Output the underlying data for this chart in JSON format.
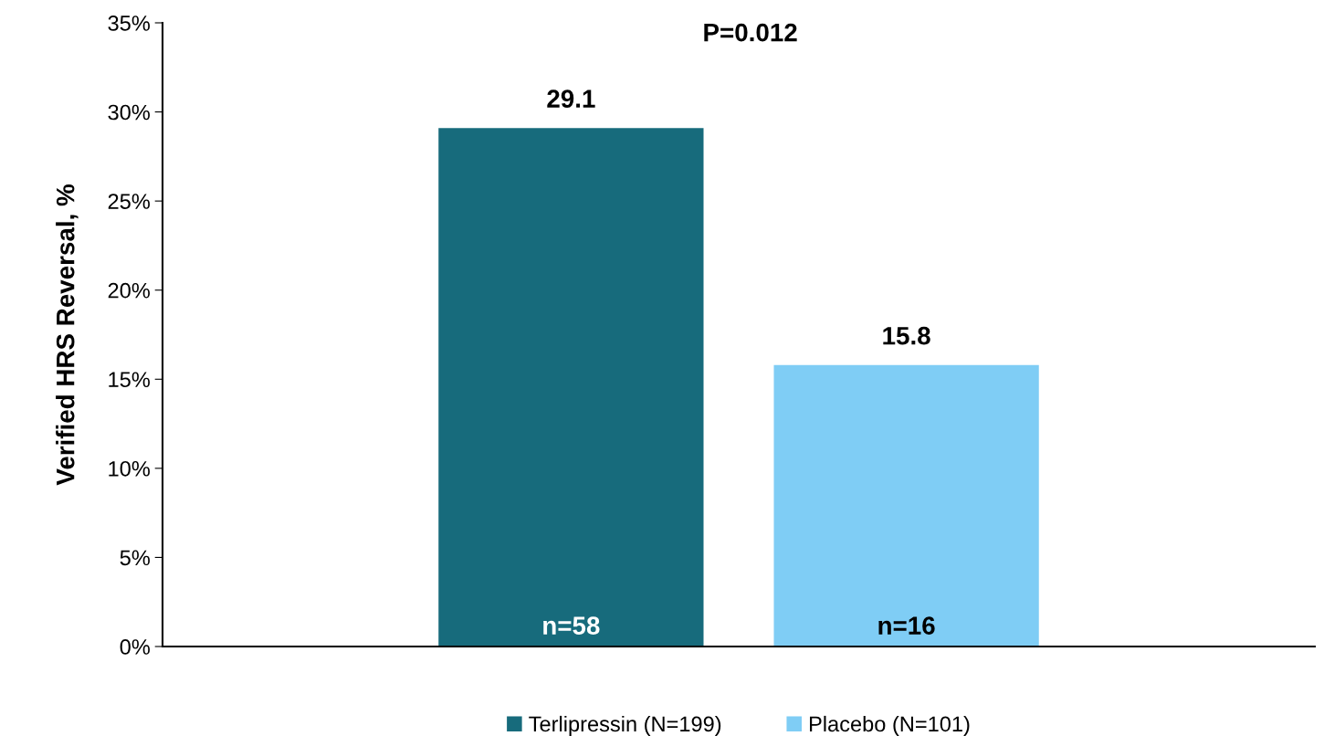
{
  "chart_data": {
    "type": "bar",
    "ylabel": "Verified HRS Reversal, %",
    "categories": [
      null
    ],
    "series": [
      {
        "name": "Terlipressin (N=199)",
        "color": "#176b7c",
        "values": [
          29.1
        ]
      },
      {
        "name": "Placebo (N=101)",
        "color": "#7fcdf5",
        "values": [
          15.8
        ]
      }
    ],
    "ylim": [
      0,
      35
    ],
    "yticks": [
      {
        "value": 0,
        "label": "0%"
      },
      {
        "value": 5,
        "label": "5%"
      },
      {
        "value": 10,
        "label": "10%"
      },
      {
        "value": 15,
        "label": "15%"
      },
      {
        "value": 20,
        "label": "20%"
      },
      {
        "value": 25,
        "label": "25%"
      },
      {
        "value": 30,
        "label": "30%"
      },
      {
        "value": 35,
        "label": "35%"
      }
    ],
    "data_labels": true,
    "grid": false,
    "legend": "bottom",
    "annotations": [
      "P=0.012",
      "n=58",
      "n=16"
    ]
  }
}
